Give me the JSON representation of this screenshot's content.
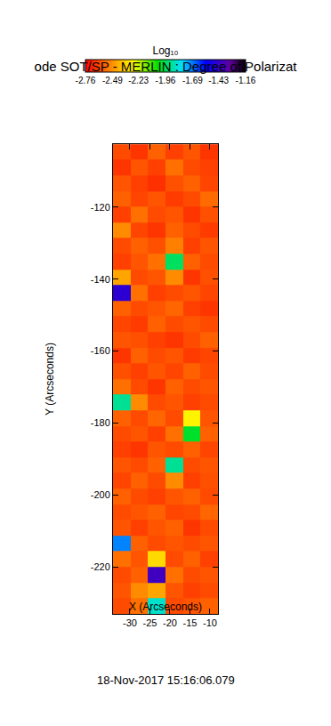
{
  "chart_data": {
    "type": "heatmap",
    "title": "ode SOT/SP - MERLIN : Degree of Polarizat",
    "x_label": "X (Arcseconds)",
    "y_label": "Y (Arcseconds)",
    "colorbar_title": "Log₁₀",
    "annotations": [
      "18-Nov-2017 15:16:06.079"
    ],
    "xlim": [
      -34.2,
      -8
    ],
    "ylim": [
      -233,
      -102.5
    ],
    "xticks": [
      -30,
      -25,
      -20,
      -15,
      -10
    ],
    "yticks": [
      -220,
      -200,
      -180,
      -160,
      -140,
      -120
    ],
    "zlim": [
      -2.76,
      -1.16
    ],
    "zticks": [
      -2.76,
      -2.49,
      -2.23,
      -1.96,
      -1.69,
      -1.43,
      -1.16
    ],
    "x": [
      -32.02,
      -27.65,
      -23.28,
      -18.92,
      -14.55,
      -10.18
    ],
    "y": [
      -104.7,
      -109.0,
      -113.4,
      -117.7,
      -122.1,
      -126.4,
      -130.8,
      -135.1,
      -139.5,
      -143.8,
      -148.2,
      -152.5,
      -156.9,
      -161.2,
      -165.6,
      -169.9,
      -174.3,
      -178.6,
      -183.0,
      -187.3,
      -191.7,
      -196.0,
      -200.4,
      -204.7,
      -209.1,
      -213.4,
      -217.8,
      -222.1,
      -226.5,
      -230.8
    ],
    "z": [
      [
        -2.62,
        -2.66,
        -2.58,
        -2.64,
        -2.6,
        -2.66
      ],
      [
        -2.66,
        -2.6,
        -2.64,
        -2.55,
        -2.62,
        -2.64
      ],
      [
        -2.6,
        -2.64,
        -2.67,
        -2.61,
        -2.58,
        -2.63
      ],
      [
        -2.58,
        -2.63,
        -2.6,
        -2.65,
        -2.62,
        -2.56
      ],
      [
        -2.64,
        -2.55,
        -2.62,
        -2.6,
        -2.66,
        -2.61
      ],
      [
        -2.5,
        -2.63,
        -2.66,
        -2.58,
        -2.62,
        -2.65
      ],
      [
        -2.62,
        -2.58,
        -2.61,
        -2.52,
        -2.64,
        -2.6
      ],
      [
        -2.64,
        -2.6,
        -2.55,
        -1.95,
        -2.58,
        -2.62
      ],
      [
        -2.45,
        -2.62,
        -2.6,
        -2.5,
        -2.66,
        -2.61
      ],
      [
        -1.45,
        -2.55,
        -2.64,
        -2.62,
        -2.6,
        -2.63
      ],
      [
        -2.58,
        -2.62,
        -2.6,
        -2.57,
        -2.64,
        -2.66
      ],
      [
        -2.63,
        -2.65,
        -2.58,
        -2.62,
        -2.6,
        -2.62
      ],
      [
        -2.6,
        -2.61,
        -2.64,
        -2.66,
        -2.62,
        -2.58
      ],
      [
        -2.66,
        -2.58,
        -2.62,
        -2.6,
        -2.65,
        -2.63
      ],
      [
        -2.61,
        -2.64,
        -2.6,
        -2.63,
        -2.58,
        -2.62
      ],
      [
        -2.55,
        -2.62,
        -2.66,
        -2.58,
        -2.62,
        -2.6
      ],
      [
        -1.9,
        -2.5,
        -2.62,
        -2.6,
        -2.64,
        -2.62
      ],
      [
        -2.58,
        -2.62,
        -2.57,
        -2.62,
        -2.3,
        -2.6
      ],
      [
        -2.62,
        -2.6,
        -2.64,
        -2.55,
        -2.0,
        -2.58
      ],
      [
        -2.64,
        -2.66,
        -2.6,
        -2.62,
        -2.58,
        -2.63
      ],
      [
        -2.6,
        -2.62,
        -2.58,
        -1.9,
        -2.62,
        -2.6
      ],
      [
        -2.63,
        -2.58,
        -2.62,
        -2.5,
        -2.64,
        -2.61
      ],
      [
        -2.58,
        -2.62,
        -2.64,
        -2.6,
        -2.58,
        -2.62
      ],
      [
        -2.62,
        -2.6,
        -2.58,
        -2.63,
        -2.62,
        -2.57
      ],
      [
        -2.6,
        -2.64,
        -2.6,
        -2.58,
        -2.66,
        -2.62
      ],
      [
        -1.7,
        -2.58,
        -2.62,
        -2.6,
        -2.62,
        -2.6
      ],
      [
        -2.55,
        -2.6,
        -2.35,
        -2.62,
        -2.58,
        -2.64
      ],
      [
        -2.62,
        -2.58,
        -1.4,
        -2.55,
        -2.62,
        -2.6
      ],
      [
        -2.6,
        -2.5,
        -2.45,
        -2.6,
        -2.64,
        -2.62
      ],
      [
        -2.62,
        -2.55,
        -1.85,
        -2.62,
        -2.6,
        -2.58
      ]
    ]
  }
}
